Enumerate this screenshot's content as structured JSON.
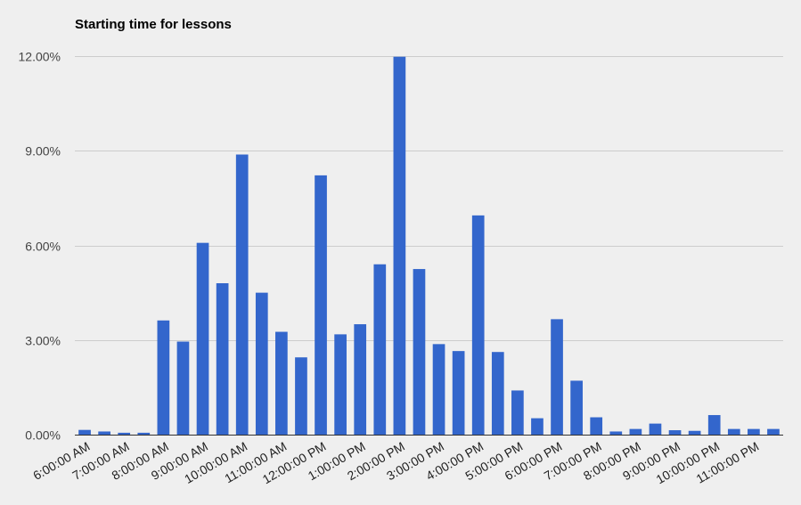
{
  "chart_data": {
    "type": "bar",
    "title": "Starting time for lessons",
    "xlabel": "",
    "ylabel": "",
    "ylim": [
      0,
      12
    ],
    "y_ticks": [
      0,
      3,
      6,
      9,
      12
    ],
    "y_tick_labels": [
      "0.00%",
      "3.00%",
      "6.00%",
      "9.00%",
      "12.00%"
    ],
    "categories": [
      "6:00:00 AM",
      "6:30:00 AM",
      "7:00:00 AM",
      "7:30:00 AM",
      "8:00:00 AM",
      "8:30:00 AM",
      "9:00:00 AM",
      "9:30:00 AM",
      "10:00:00 AM",
      "10:30:00 AM",
      "11:00:00 AM",
      "11:30:00 AM",
      "12:00:00 PM",
      "12:30:00 PM",
      "1:00:00 PM",
      "1:30:00 PM",
      "2:00:00 PM",
      "2:30:00 PM",
      "3:00:00 PM",
      "3:30:00 PM",
      "4:00:00 PM",
      "4:30:00 PM",
      "5:00:00 PM",
      "5:30:00 PM",
      "6:00:00 PM",
      "6:30:00 PM",
      "7:00:00 PM",
      "7:30:00 PM",
      "8:00:00 PM",
      "8:30:00 PM",
      "9:00:00 PM",
      "9:30:00 PM",
      "10:00:00 PM",
      "10:30:00 PM",
      "11:00:00 PM",
      "11:30:00 PM"
    ],
    "x_tick_labels": [
      "6:00:00 AM",
      "7:00:00 AM",
      "8:00:00 AM",
      "9:00:00 AM",
      "10:00:00 AM",
      "11:00:00 AM",
      "12:00:00 PM",
      "1:00:00 PM",
      "2:00:00 PM",
      "3:00:00 PM",
      "4:00:00 PM",
      "5:00:00 PM",
      "6:00:00 PM",
      "7:00:00 PM",
      "8:00:00 PM",
      "9:00:00 PM",
      "10:00:00 PM",
      "11:00:00 PM"
    ],
    "values": [
      0.15,
      0.1,
      0.06,
      0.06,
      3.62,
      2.95,
      6.08,
      4.8,
      8.88,
      4.5,
      3.26,
      2.45,
      8.22,
      3.18,
      3.5,
      5.4,
      11.98,
      5.25,
      2.87,
      2.65,
      6.95,
      2.62,
      1.4,
      0.52,
      3.66,
      1.71,
      0.55,
      0.1,
      0.18,
      0.35,
      0.14,
      0.12,
      0.62,
      0.18,
      0.18,
      0.18
    ],
    "series_color": "#3366cc",
    "grid": true,
    "legend": "none"
  }
}
